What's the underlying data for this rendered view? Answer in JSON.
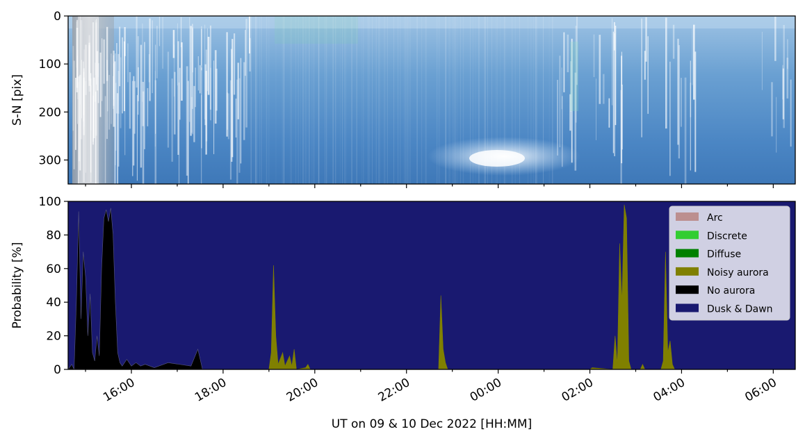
{
  "colors": {
    "background": "#1b1a6e",
    "arc": "#bc8f8f",
    "discrete": "#32cd32",
    "diffuse": "#008000",
    "noisy": "#808000",
    "no_aurora": "#000000",
    "dusk_dawn": "#191970"
  },
  "chart_data": [
    {
      "type": "heatmap",
      "title": "",
      "ylabel": "S-N [pix]",
      "xlabel": "",
      "ylim": [
        350,
        0
      ],
      "y_ticks": [
        "0",
        "100",
        "200",
        "300"
      ],
      "description_note": "keogram image strip"
    },
    {
      "type": "area",
      "title": "",
      "xlabel": "UT on 09 & 10 Dec 2022 [HH:MM]",
      "ylabel": "Probability [%]",
      "ylim": [
        0,
        100
      ],
      "y_ticks": [
        "0",
        "20",
        "40",
        "60",
        "80",
        "100"
      ],
      "x_ticks": [
        "16:00",
        "18:00",
        "20:00",
        "22:00",
        "00:00",
        "02:00",
        "04:00",
        "06:00"
      ],
      "x_range_hours": [
        14.62,
        30.48
      ],
      "legend_position": "top-right",
      "legend": [
        "Arc",
        "Discrete",
        "Diffuse",
        "Noisy aurora",
        "No aurora",
        "Dusk & Dawn"
      ],
      "series": [
        {
          "name": "No aurora",
          "points": [
            [
              14.62,
              0
            ],
            [
              14.7,
              3
            ],
            [
              14.75,
              0
            ],
            [
              14.8,
              40
            ],
            [
              14.85,
              94
            ],
            [
              14.9,
              30
            ],
            [
              14.95,
              70
            ],
            [
              15.0,
              55
            ],
            [
              15.05,
              20
            ],
            [
              15.1,
              45
            ],
            [
              15.15,
              10
            ],
            [
              15.2,
              5
            ],
            [
              15.25,
              20
            ],
            [
              15.3,
              8
            ],
            [
              15.35,
              60
            ],
            [
              15.4,
              90
            ],
            [
              15.45,
              95
            ],
            [
              15.5,
              88
            ],
            [
              15.55,
              96
            ],
            [
              15.6,
              80
            ],
            [
              15.65,
              40
            ],
            [
              15.7,
              10
            ],
            [
              15.75,
              4
            ],
            [
              15.8,
              2
            ],
            [
              15.9,
              6
            ],
            [
              16.0,
              2
            ],
            [
              16.1,
              4
            ],
            [
              16.2,
              2
            ],
            [
              16.3,
              3
            ],
            [
              16.5,
              1
            ],
            [
              16.8,
              4
            ],
            [
              17.05,
              3
            ],
            [
              17.3,
              2
            ],
            [
              17.45,
              12
            ],
            [
              17.55,
              0
            ],
            [
              30.48,
              0
            ]
          ]
        },
        {
          "name": "Noisy aurora",
          "points": [
            [
              19.0,
              0
            ],
            [
              19.05,
              10
            ],
            [
              19.1,
              62
            ],
            [
              19.15,
              20
            ],
            [
              19.2,
              3
            ],
            [
              19.3,
              10
            ],
            [
              19.35,
              2
            ],
            [
              19.45,
              8
            ],
            [
              19.5,
              2
            ],
            [
              19.55,
              12
            ],
            [
              19.6,
              0
            ],
            [
              19.8,
              1
            ],
            [
              19.85,
              3
            ],
            [
              19.9,
              0
            ],
            [
              22.7,
              0
            ],
            [
              22.75,
              44
            ],
            [
              22.8,
              12
            ],
            [
              22.85,
              4
            ],
            [
              22.9,
              0
            ],
            [
              26.0,
              0
            ],
            [
              26.05,
              1
            ],
            [
              26.5,
              0
            ],
            [
              26.55,
              20
            ],
            [
              26.6,
              3
            ],
            [
              26.65,
              75
            ],
            [
              26.7,
              40
            ],
            [
              26.75,
              98
            ],
            [
              26.8,
              90
            ],
            [
              26.85,
              5
            ],
            [
              26.9,
              0
            ],
            [
              27.1,
              0
            ],
            [
              27.15,
              3
            ],
            [
              27.2,
              0
            ],
            [
              27.55,
              0
            ],
            [
              27.6,
              5
            ],
            [
              27.65,
              70
            ],
            [
              27.7,
              10
            ],
            [
              27.75,
              17
            ],
            [
              27.8,
              3
            ],
            [
              27.85,
              0
            ]
          ]
        }
      ]
    }
  ]
}
